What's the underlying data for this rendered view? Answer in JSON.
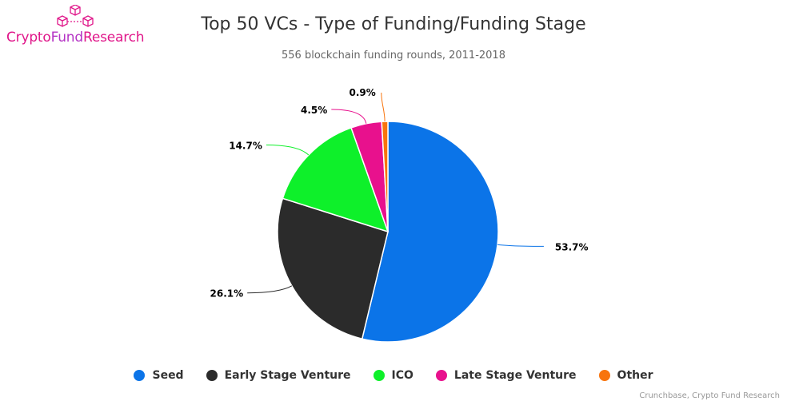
{
  "logo": {
    "part1": "Crypto",
    "part2": "Fund",
    "part3": "Research"
  },
  "credits": "Crunchbase, Crypto Fund Research",
  "chart_data": {
    "type": "pie",
    "title": "Top 50 VCs - Type of Funding/Funding Stage",
    "subtitle": "556 blockchain funding rounds, 2011-2018",
    "legend_position": "bottom",
    "slices": [
      {
        "name": "Seed",
        "value": 53.7,
        "label": "53.7%",
        "color": "#0b74e8"
      },
      {
        "name": "Early Stage Venture",
        "value": 26.1,
        "label": "26.1%",
        "color": "#2b2b2b"
      },
      {
        "name": "ICO",
        "value": 14.7,
        "label": "14.7%",
        "color": "#0ef02a"
      },
      {
        "name": "Late Stage Venture",
        "value": 4.5,
        "label": "4.5%",
        "color": "#e8118d"
      },
      {
        "name": "Other",
        "value": 0.9,
        "label": "0.9%",
        "color": "#f8740c"
      }
    ]
  }
}
